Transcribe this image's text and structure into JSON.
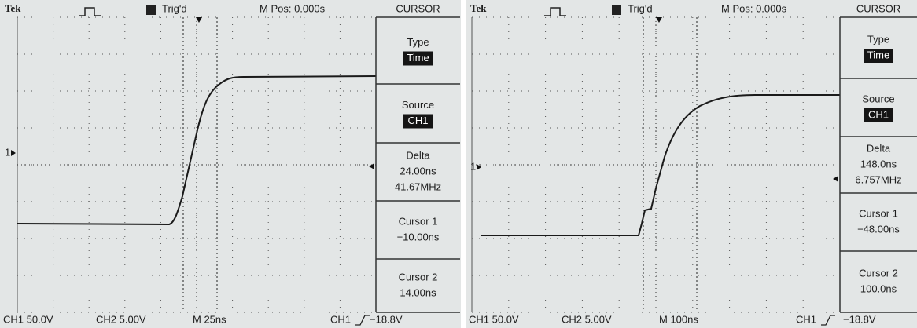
{
  "screens": [
    {
      "header": {
        "brand": "Tek",
        "trigger_status": "Trig'd",
        "position": "M Pos: 0.000s",
        "menu_title": "CURSOR"
      },
      "channel_marker": "1",
      "menu": [
        {
          "label": "Type",
          "values": [
            "Time"
          ]
        },
        {
          "label": "Source",
          "values": [
            "CH1"
          ]
        },
        {
          "label": "Delta",
          "values": [
            "24.00ns",
            "41.67MHz"
          ]
        },
        {
          "label": "Cursor 1",
          "values": [
            "−10.00ns"
          ]
        },
        {
          "label": "Cursor 2",
          "values": [
            "14.00ns"
          ]
        }
      ],
      "footer": {
        "ch1": "CH1 50.0V",
        "ch2": "CH2 5.00V",
        "timebase": "M 25ns",
        "trigger_source": "CH1",
        "trigger_level": "−18.8V"
      }
    },
    {
      "header": {
        "brand": "Tek",
        "trigger_status": "Trig'd",
        "position": "M Pos: 0.000s",
        "menu_title": "CURSOR"
      },
      "channel_marker": "1",
      "menu": [
        {
          "label": "Type",
          "values": [
            "Time"
          ]
        },
        {
          "label": "Source",
          "values": [
            "CH1"
          ]
        },
        {
          "label": "Delta",
          "values": [
            "148.0ns",
            "6.757MHz"
          ]
        },
        {
          "label": "Cursor 1",
          "values": [
            "−48.00ns"
          ]
        },
        {
          "label": "Cursor 2",
          "values": [
            "100.0ns"
          ]
        }
      ],
      "footer": {
        "ch1": "CH1 50.0V",
        "ch2": "CH2 5.00V",
        "timebase": "M 100ns",
        "trigger_source": "CH1",
        "trigger_level": "−18.8V"
      }
    }
  ]
}
